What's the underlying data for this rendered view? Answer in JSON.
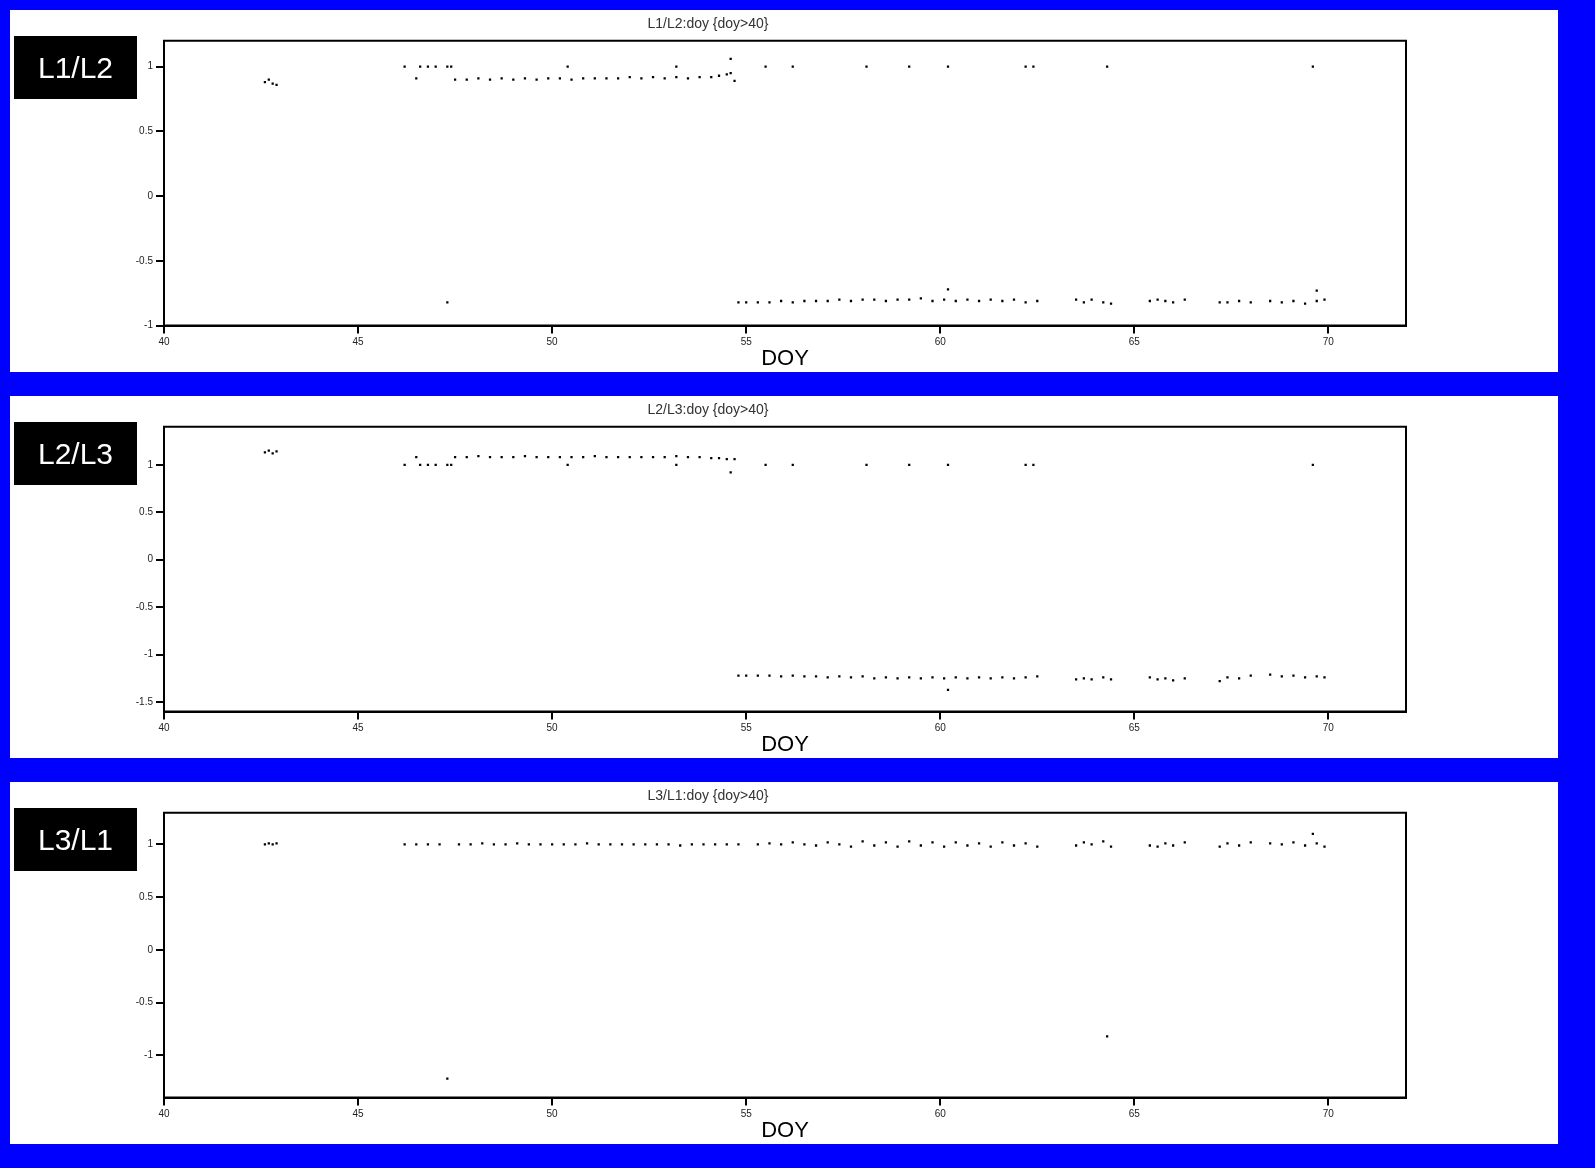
{
  "chart_data": [
    {
      "type": "scatter",
      "title": "L1/L2:doy {doy>40}",
      "xlabel": "DOY",
      "annotations": [
        "L1/L2"
      ],
      "marker": "square",
      "xlim": [
        40,
        72
      ],
      "ylim": [
        -1,
        1.2
      ],
      "xticks": [
        40,
        45,
        50,
        55,
        60,
        65,
        70
      ],
      "yticks": [
        -1,
        -0.5,
        0,
        0.5,
        1
      ],
      "series": [
        {
          "color": "#000000",
          "x": [
            42.6,
            42.7,
            42.8,
            42.9,
            46.2,
            46.5,
            46.6,
            46.8,
            47.0,
            47.3,
            47.4,
            47.3,
            47.5,
            47.8,
            48.1,
            48.4,
            48.7,
            49.0,
            49.3,
            49.6,
            49.9,
            50.2,
            50.5,
            50.8,
            51.1,
            51.4,
            51.7,
            52.0,
            52.3,
            52.6,
            52.9,
            53.2,
            53.5,
            53.8,
            54.1,
            54.3,
            54.5,
            54.6,
            54.7,
            54.6,
            50.4,
            53.2,
            55.5,
            56.2,
            58.1,
            59.2,
            60.2,
            62.2,
            62.4,
            64.3,
            69.6
          ],
          "values": [
            0.88,
            0.9,
            0.87,
            0.86,
            1,
            0.91,
            1,
            1,
            1,
            1,
            1,
            -0.82,
            0.9,
            0.9,
            0.91,
            0.9,
            0.91,
            0.9,
            0.91,
            0.9,
            0.91,
            0.91,
            0.9,
            0.91,
            0.91,
            0.91,
            0.91,
            0.92,
            0.91,
            0.92,
            0.91,
            0.92,
            0.91,
            0.92,
            0.92,
            0.93,
            0.94,
            0.95,
            0.89,
            1.06,
            1,
            1,
            1,
            1,
            1,
            1,
            1,
            1,
            1,
            1,
            1
          ]
        },
        {
          "color": "#000000",
          "x": [
            54.8,
            55.0,
            55.3,
            55.6,
            55.9,
            56.2,
            56.5,
            56.8,
            57.1,
            57.4,
            57.7,
            58.0,
            58.3,
            58.6,
            58.9,
            59.2,
            59.5,
            59.8,
            60.1,
            60.4,
            60.7,
            61.0,
            61.3,
            61.6,
            61.9,
            62.2,
            62.5,
            63.5,
            63.7,
            63.9,
            64.2,
            64.4,
            65.4,
            65.6,
            65.8,
            66.0,
            66.3,
            67.2,
            67.4,
            67.7,
            68.0,
            68.5,
            68.8,
            69.1,
            69.4,
            69.7,
            69.9,
            60.2,
            69.7
          ],
          "values": [
            -0.82,
            -0.82,
            -0.82,
            -0.82,
            -0.81,
            -0.82,
            -0.81,
            -0.81,
            -0.81,
            -0.8,
            -0.81,
            -0.8,
            -0.8,
            -0.81,
            -0.8,
            -0.8,
            -0.79,
            -0.81,
            -0.8,
            -0.81,
            -0.8,
            -0.81,
            -0.8,
            -0.81,
            -0.8,
            -0.82,
            -0.81,
            -0.8,
            -0.82,
            -0.8,
            -0.82,
            -0.83,
            -0.81,
            -0.8,
            -0.81,
            -0.82,
            -0.8,
            -0.82,
            -0.82,
            -0.81,
            -0.82,
            -0.81,
            -0.82,
            -0.81,
            -0.83,
            -0.81,
            -0.8,
            -0.72,
            -0.73
          ]
        }
      ]
    },
    {
      "type": "scatter",
      "title": "L2/L3:doy {doy>40}",
      "xlabel": "DOY",
      "annotations": [
        "L2/L3"
      ],
      "marker": "square",
      "xlim": [
        40,
        72
      ],
      "ylim": [
        -1.6,
        1.4
      ],
      "xticks": [
        40,
        45,
        50,
        55,
        60,
        65,
        70
      ],
      "yticks": [
        -1.5,
        -1,
        -0.5,
        0,
        0.5,
        1
      ],
      "series": [
        {
          "color": "#000000",
          "x": [
            42.6,
            42.7,
            42.8,
            42.9,
            46.2,
            46.5,
            46.6,
            46.8,
            47.0,
            47.3,
            47.4,
            47.5,
            47.8,
            48.1,
            48.4,
            48.7,
            49.0,
            49.3,
            49.6,
            49.9,
            50.2,
            50.5,
            50.8,
            51.1,
            51.4,
            51.7,
            52.0,
            52.3,
            52.6,
            52.9,
            53.2,
            53.5,
            53.8,
            54.1,
            54.3,
            54.5,
            54.6,
            54.7,
            50.4,
            53.2,
            55.5,
            56.2,
            58.1,
            59.2,
            60.2,
            62.2,
            62.4,
            69.6
          ],
          "values": [
            1.13,
            1.15,
            1.12,
            1.14,
            1,
            1.08,
            1,
            1,
            1,
            1,
            1,
            1.08,
            1.08,
            1.09,
            1.08,
            1.08,
            1.08,
            1.09,
            1.08,
            1.08,
            1.08,
            1.08,
            1.08,
            1.09,
            1.08,
            1.08,
            1.08,
            1.08,
            1.08,
            1.08,
            1.09,
            1.08,
            1.08,
            1.07,
            1.07,
            1.06,
            0.92,
            1.06,
            1,
            1,
            1,
            1,
            1,
            1,
            1,
            1,
            1,
            1
          ]
        },
        {
          "color": "#000000",
          "x": [
            54.8,
            55.0,
            55.3,
            55.6,
            55.9,
            56.2,
            56.5,
            56.8,
            57.1,
            57.4,
            57.7,
            58.0,
            58.3,
            58.6,
            58.9,
            59.2,
            59.5,
            59.8,
            60.1,
            60.4,
            60.7,
            61.0,
            61.3,
            61.6,
            61.9,
            62.2,
            62.5,
            63.5,
            63.7,
            63.9,
            64.2,
            64.4,
            65.4,
            65.6,
            65.8,
            66.0,
            66.3,
            67.2,
            67.4,
            67.7,
            68.0,
            68.5,
            68.8,
            69.1,
            69.4,
            69.7,
            69.9,
            60.2
          ],
          "values": [
            -1.22,
            -1.22,
            -1.22,
            -1.22,
            -1.23,
            -1.22,
            -1.23,
            -1.23,
            -1.24,
            -1.23,
            -1.24,
            -1.23,
            -1.25,
            -1.24,
            -1.25,
            -1.24,
            -1.25,
            -1.24,
            -1.25,
            -1.24,
            -1.25,
            -1.24,
            -1.25,
            -1.24,
            -1.25,
            -1.24,
            -1.23,
            -1.26,
            -1.25,
            -1.26,
            -1.24,
            -1.26,
            -1.24,
            -1.26,
            -1.25,
            -1.27,
            -1.25,
            -1.28,
            -1.24,
            -1.25,
            -1.22,
            -1.21,
            -1.23,
            -1.22,
            -1.24,
            -1.23,
            -1.24,
            -1.37
          ]
        }
      ]
    },
    {
      "type": "scatter",
      "title": "L3/L1:doy {doy>40}",
      "xlabel": "DOY",
      "annotations": [
        "L3/L1"
      ],
      "marker": "square",
      "xlim": [
        40,
        72
      ],
      "ylim": [
        -1.4,
        1.3
      ],
      "xticks": [
        40,
        45,
        50,
        55,
        60,
        65,
        70
      ],
      "yticks": [
        -1,
        -0.5,
        0,
        0.5,
        1
      ],
      "series": [
        {
          "color": "#000000",
          "x": [
            42.6,
            42.7,
            42.8,
            42.9,
            46.2,
            46.5,
            46.8,
            47.1,
            47.6,
            47.9,
            48.2,
            48.5,
            48.8,
            49.1,
            49.4,
            49.7,
            50.0,
            50.3,
            50.6,
            50.9,
            51.2,
            51.5,
            51.8,
            52.1,
            52.4,
            52.7,
            53.0,
            53.3,
            53.6,
            53.9,
            54.2,
            54.5,
            54.8,
            55.3,
            55.6,
            55.9,
            56.2,
            56.5,
            56.8,
            57.1,
            57.4,
            57.7,
            58.0,
            58.3,
            58.6,
            58.9,
            59.2,
            59.5,
            59.8,
            60.1,
            60.4,
            60.7,
            61.0,
            61.3,
            61.6,
            61.9,
            62.2,
            62.5,
            63.5,
            63.7,
            63.9,
            64.2,
            64.4,
            65.4,
            65.6,
            65.8,
            66.0,
            66.3,
            67.2,
            67.4,
            67.7,
            68.0,
            68.5,
            68.8,
            69.1,
            69.4,
            69.7,
            69.9,
            69.6
          ],
          "values": [
            1,
            1.01,
            1,
            1.01,
            1,
            1,
            1,
            1,
            1,
            1,
            1.01,
            1,
            1,
            1.01,
            1,
            1,
            1,
            1,
            1,
            1.01,
            1,
            1,
            1,
            1,
            1,
            1,
            1,
            0.99,
            1,
            1,
            1,
            1,
            1,
            1,
            1.01,
            1,
            1.02,
            1,
            0.99,
            1.02,
            1,
            0.98,
            1.03,
            0.99,
            1.02,
            0.98,
            1.03,
            0.99,
            1.02,
            0.98,
            1.02,
            0.99,
            1.01,
            0.98,
            1.02,
            0.99,
            1.01,
            0.98,
            0.99,
            1.02,
            1,
            1.03,
            0.98,
            0.99,
            0.98,
            1.01,
            0.99,
            1.02,
            0.98,
            1.01,
            0.99,
            1.02,
            1.01,
            1,
            1.02,
            0.99,
            1.01,
            0.98,
            1.1
          ]
        },
        {
          "color": "#000000",
          "x": [
            47.3,
            64.3
          ],
          "values": [
            -1.22,
            -0.82
          ]
        }
      ]
    }
  ]
}
